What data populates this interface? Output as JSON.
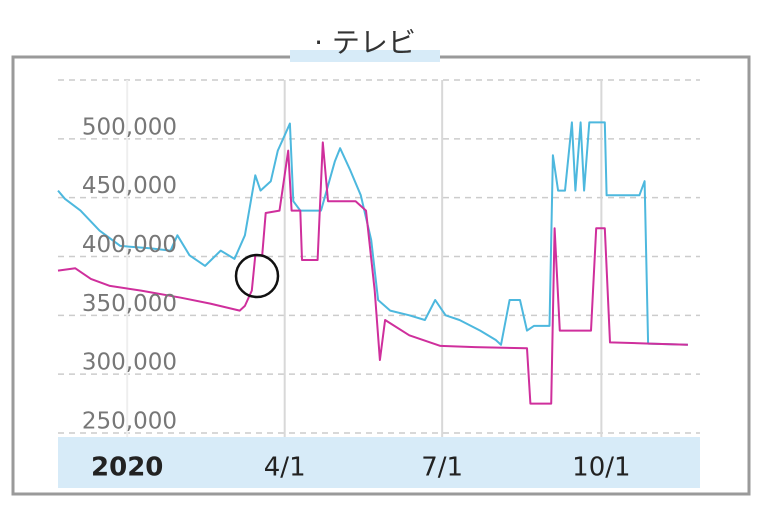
{
  "chart_data": {
    "type": "line",
    "title": "· テレビ",
    "xlim": [
      -40,
      331
    ],
    "xticks": [
      {
        "value": 0,
        "label": "2020"
      },
      {
        "value": 91,
        "label": "4/1"
      },
      {
        "value": 182,
        "label": "7/1"
      },
      {
        "value": 274,
        "label": "10/1"
      }
    ],
    "ylim": [
      250000,
      550000
    ],
    "yticks": [
      {
        "value": 250000,
        "label": "250,000"
      },
      {
        "value": 300000,
        "label": "300,000"
      },
      {
        "value": 350000,
        "label": "350,000"
      },
      {
        "value": 400000,
        "label": "400,000"
      },
      {
        "value": 450000,
        "label": "450,000"
      },
      {
        "value": 500000,
        "label": "500,000"
      }
    ],
    "grid": true,
    "series": [
      {
        "color": "#4db8de",
        "x": [
          -40,
          -36,
          -27,
          -16,
          -4,
          13,
          25,
          29,
          36,
          45,
          54,
          62,
          68,
          74,
          77,
          83,
          87,
          91,
          94,
          96,
          100,
          112,
          120,
          123,
          129,
          135,
          141,
          145,
          152,
          163,
          172,
          178,
          184,
          192,
          204,
          213,
          216,
          221,
          227,
          231,
          235,
          244,
          246,
          249,
          253,
          257,
          259,
          262,
          264,
          267,
          276,
          277,
          296,
          299,
          301,
          324
        ],
        "values": [
          456000,
          449000,
          439000,
          422000,
          409000,
          407000,
          405000,
          418000,
          401000,
          392000,
          405000,
          398000,
          418000,
          469000,
          456000,
          464000,
          490000,
          503000,
          513000,
          447000,
          439000,
          439000,
          481000,
          492000,
          473000,
          452000,
          414000,
          363000,
          354000,
          350000,
          346000,
          363000,
          350000,
          346000,
          337000,
          329000,
          325000,
          363000,
          363000,
          337000,
          341000,
          341000,
          486000,
          456000,
          456000,
          514000,
          456000,
          514000,
          456000,
          514000,
          514000,
          452000,
          452000,
          464000,
          326000,
          325000
        ]
      },
      {
        "color": "#cf2f9c",
        "x": [
          -40,
          -30,
          -21,
          -10,
          8,
          31,
          48,
          65,
          68,
          72,
          74,
          78,
          80,
          88,
          93,
          95,
          100,
          101,
          110,
          113,
          116,
          132,
          138,
          143,
          146,
          149,
          163,
          181,
          201,
          231,
          233,
          245,
          247,
          250,
          268,
          271,
          276,
          279,
          302,
          324
        ],
        "values": [
          388000,
          390000,
          381000,
          375000,
          371000,
          365000,
          360000,
          354000,
          358000,
          371000,
          401000,
          401000,
          437000,
          439000,
          490000,
          439000,
          439000,
          397000,
          397000,
          497000,
          447000,
          447000,
          439000,
          371000,
          312000,
          346000,
          333000,
          324000,
          323000,
          322000,
          275000,
          275000,
          424000,
          337000,
          337000,
          424000,
          424000,
          327000,
          326000,
          325000
        ]
      }
    ]
  }
}
